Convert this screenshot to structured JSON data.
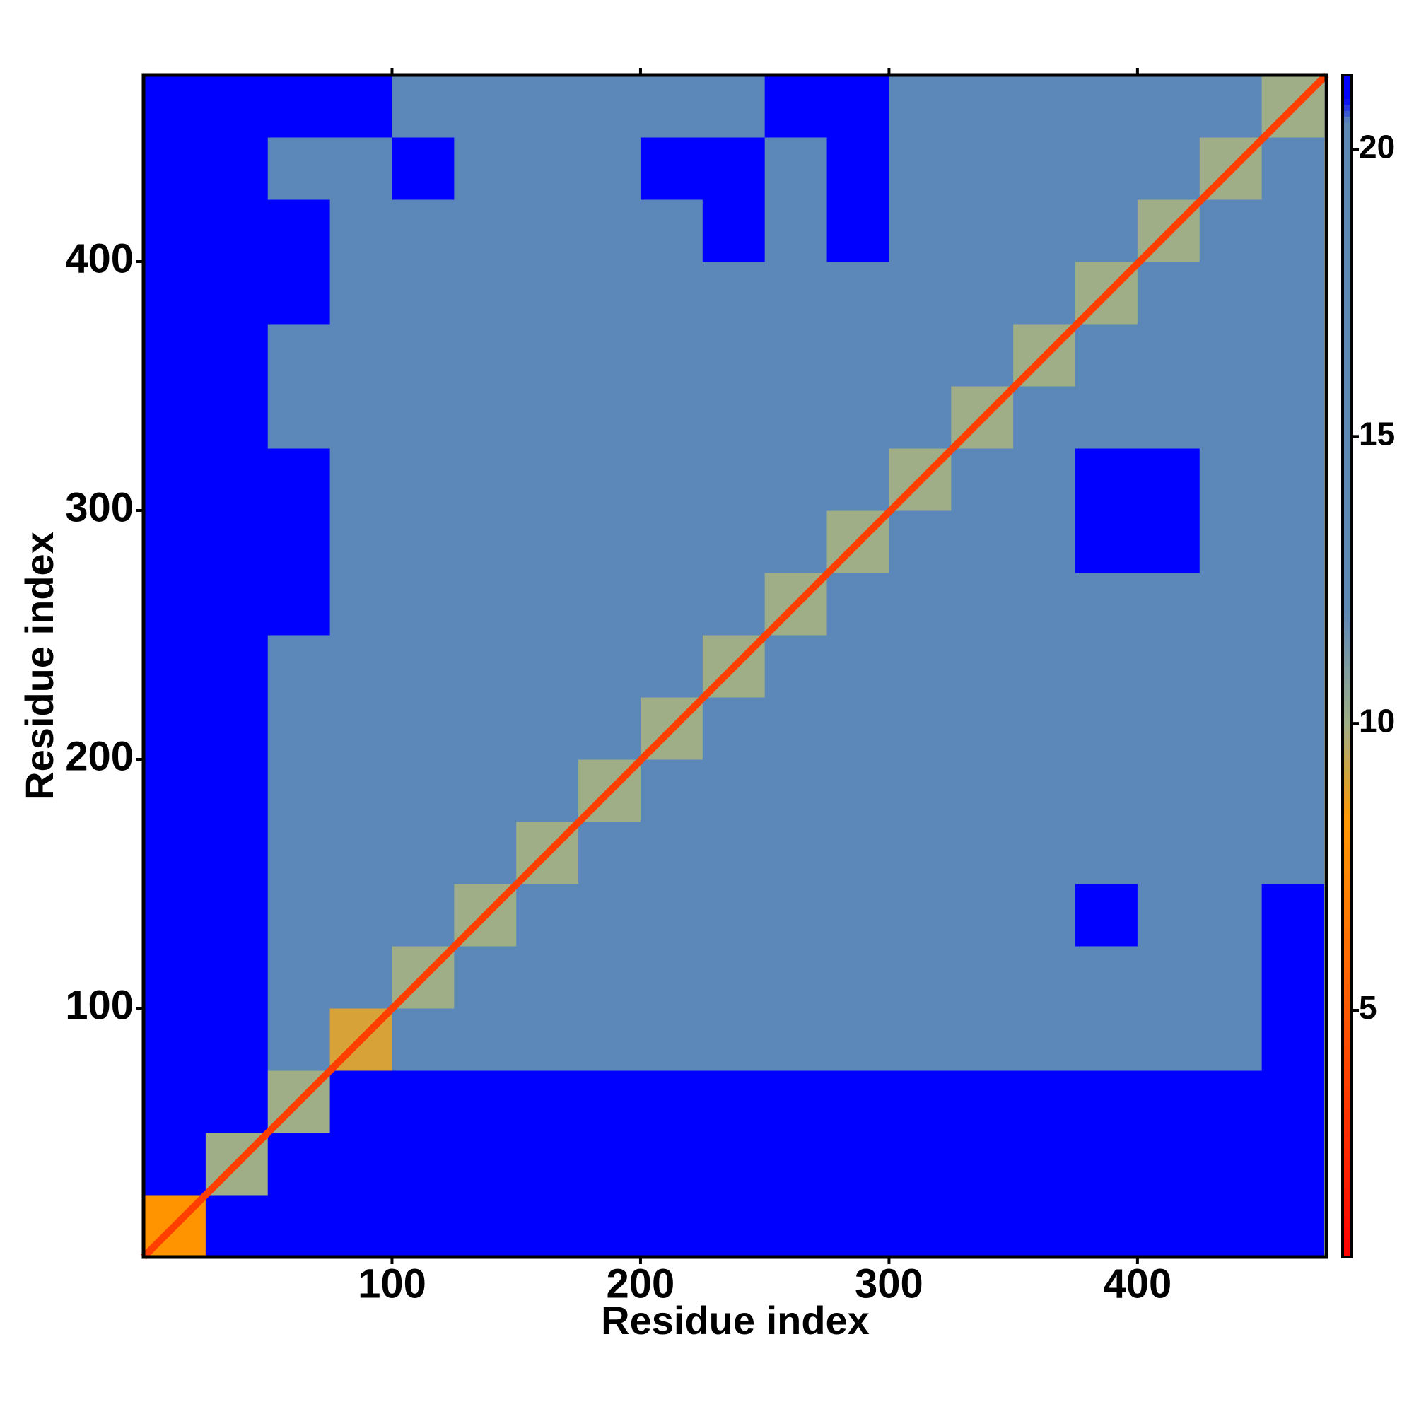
{
  "chart_data": {
    "type": "heatmap",
    "x_label": "Residue index",
    "y_label": "Residue index",
    "xlim": [
      0,
      476
    ],
    "ylim": [
      0,
      475
    ],
    "xticks": [
      100,
      200,
      300,
      400
    ],
    "yticks": [
      100,
      200,
      300,
      400
    ],
    "bins": [
      0,
      25,
      50,
      75,
      100,
      125,
      150,
      175,
      200,
      225,
      250,
      275,
      300,
      325,
      350,
      375,
      400,
      425,
      450,
      475
    ],
    "values": [
      [
        8,
        22,
        22,
        22,
        22,
        22,
        22,
        22,
        22,
        22,
        22,
        22,
        22,
        22,
        22,
        22,
        22,
        22,
        22
      ],
      [
        22,
        10,
        22,
        22,
        22,
        22,
        22,
        22,
        22,
        22,
        22,
        22,
        22,
        22,
        22,
        22,
        22,
        22,
        22
      ],
      [
        22,
        22,
        10,
        22,
        22,
        22,
        22,
        22,
        22,
        22,
        22,
        22,
        22,
        22,
        22,
        22,
        22,
        22,
        22
      ],
      [
        22,
        22,
        14,
        9,
        18,
        18,
        18,
        18,
        16,
        18,
        18,
        18,
        18,
        17,
        18,
        18,
        18,
        18,
        22
      ],
      [
        22,
        22,
        18,
        16,
        10,
        16,
        18,
        15,
        15,
        18,
        20,
        20,
        18,
        15,
        20,
        20,
        18,
        20,
        22
      ],
      [
        22,
        22,
        18,
        17,
        14,
        10,
        14,
        18,
        18,
        18,
        20,
        18,
        18,
        16,
        20,
        22,
        20,
        20,
        22
      ],
      [
        22,
        22,
        18,
        18,
        12,
        13,
        10,
        14,
        18,
        18,
        18,
        18,
        15,
        12,
        20,
        20,
        18,
        20,
        20
      ],
      [
        22,
        22,
        18,
        14,
        14,
        16,
        14,
        10,
        12,
        18,
        18,
        18,
        18,
        15,
        20,
        20,
        20,
        18,
        20
      ],
      [
        22,
        22,
        18,
        16,
        16,
        18,
        18,
        12,
        10,
        18,
        18,
        18,
        14,
        18,
        18,
        20,
        20,
        20,
        20
      ],
      [
        22,
        22,
        20,
        18,
        14,
        18,
        18,
        18,
        14,
        10,
        18,
        20,
        18,
        18,
        20,
        20,
        20,
        20,
        20
      ],
      [
        22,
        22,
        22,
        18,
        18,
        18,
        20,
        20,
        20,
        14,
        10,
        20,
        20,
        20,
        20,
        20,
        18,
        20,
        20
      ],
      [
        22,
        22,
        22,
        18,
        18,
        20,
        20,
        20,
        20,
        20,
        13,
        10,
        14,
        18,
        20,
        22,
        22,
        20,
        20
      ],
      [
        22,
        22,
        22,
        18,
        18,
        20,
        15,
        20,
        20,
        16,
        20,
        18,
        10,
        14,
        18,
        22,
        22,
        20,
        20
      ],
      [
        22,
        22,
        18,
        18,
        18,
        16,
        14,
        18,
        14,
        18,
        20,
        20,
        14,
        10,
        18,
        18,
        20,
        20,
        20
      ],
      [
        22,
        22,
        14,
        16,
        18,
        18,
        18,
        20,
        20,
        20,
        20,
        20,
        20,
        14,
        10,
        14,
        18,
        18,
        20
      ],
      [
        22,
        22,
        22,
        18,
        20,
        20,
        20,
        20,
        20,
        20,
        20,
        20,
        20,
        20,
        16,
        10,
        13,
        14,
        18
      ],
      [
        22,
        22,
        22,
        20,
        20,
        20,
        20,
        20,
        20,
        22,
        20,
        22,
        20,
        20,
        20,
        14,
        10,
        13,
        16
      ],
      [
        22,
        22,
        18,
        20,
        22,
        20,
        20,
        20,
        22,
        22,
        20,
        22,
        20,
        20,
        20,
        16,
        14,
        10,
        13
      ],
      [
        22,
        22,
        22,
        22,
        20,
        20,
        20,
        20,
        20,
        20,
        22,
        22,
        20,
        20,
        20,
        18,
        16,
        14,
        10
      ]
    ],
    "diagonal_distance": 3.8,
    "zlim": [
      0.7,
      21.3
    ],
    "zticks": [
      5,
      10,
      15,
      20
    ],
    "colorscale": [
      [
        0.7,
        "#ff0000"
      ],
      [
        8.3,
        "#ff9a00"
      ],
      [
        10,
        "#9fae86"
      ],
      [
        12,
        "#5b87b9"
      ],
      [
        20.5,
        "#5b87b9"
      ],
      [
        20.9,
        "#0000ff"
      ]
    ]
  }
}
